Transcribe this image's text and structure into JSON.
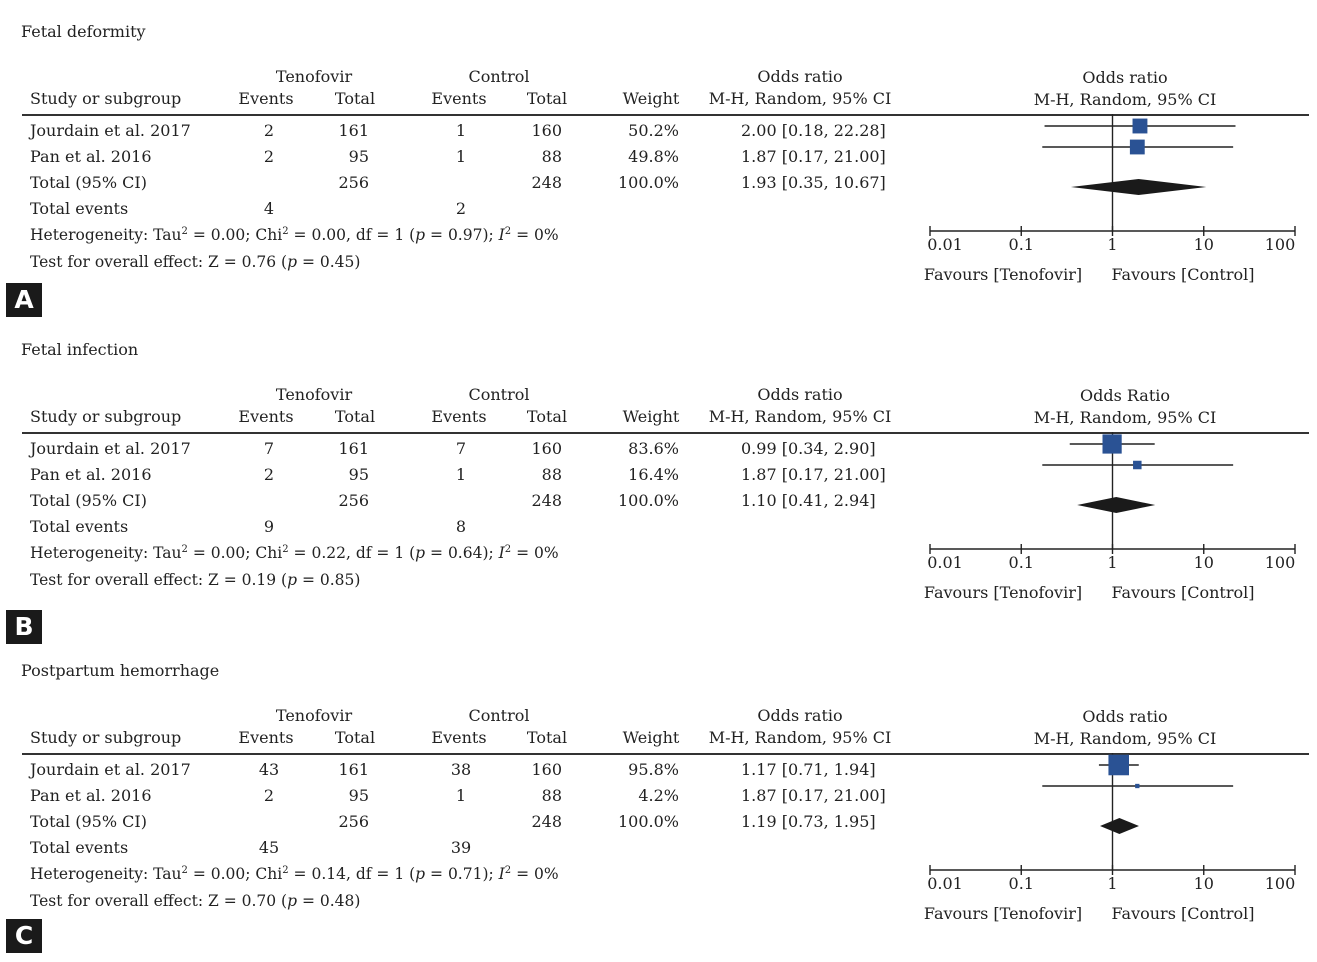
{
  "header": {
    "group_left": "Tenofovir",
    "group_right": "Control",
    "study": "Study or subgroup",
    "events": "Events",
    "total": "Total",
    "weight": "Weight",
    "or_title": "Odds ratio",
    "or_method": "M-H, Random, 95% CI"
  },
  "panels": [
    {
      "label": "A",
      "title": "Fetal deformity",
      "plot_title": "Odds ratio",
      "plot_method": "M-H, Random, 95% CI",
      "rows": [
        {
          "study": "Jourdain et al. 2017",
          "t_events": "2",
          "t_total": "161",
          "c_events": "1",
          "c_total": "160",
          "weight": "50.2%",
          "ci": "2.00 [0.18, 22.28]"
        },
        {
          "study": "Pan et al. 2016",
          "t_events": "2",
          "t_total": "95",
          "c_events": "1",
          "c_total": "88",
          "weight": "49.8%",
          "ci": "1.87 [0.17, 21.00]"
        }
      ],
      "total_row": {
        "study": "Total (95% CI)",
        "t_total": "256",
        "c_total": "248",
        "weight": "100.0%",
        "ci": "1.93 [0.35, 10.67]"
      },
      "events_row": {
        "label": "Total events",
        "t_events": "4",
        "c_events": "2"
      },
      "heterogeneity": {
        "prefix": "Heterogeneity: Tau",
        "tau": "= 0.00; Chi",
        "chi": "= 0.00, df = 1 (",
        "p": "p",
        "p_val": " = 0.97); ",
        "i": "I",
        "i_val": " = 0%"
      },
      "overall": {
        "prefix": "Test for overall effect: Z = 0.76 (",
        "p": "p",
        "p_val": " = 0.45)"
      }
    },
    {
      "label": "B",
      "title": "Fetal infection",
      "plot_title": "Odds Ratio",
      "plot_method": "M-H, Random, 95% CI",
      "rows": [
        {
          "study": "Jourdain et al. 2017",
          "t_events": "7",
          "t_total": "161",
          "c_events": "7",
          "c_total": "160",
          "weight": "83.6%",
          "ci": "0.99 [0.34, 2.90]"
        },
        {
          "study": "Pan et al. 2016",
          "t_events": "2",
          "t_total": "95",
          "c_events": "1",
          "c_total": "88",
          "weight": "16.4%",
          "ci": "1.87 [0.17, 21.00]"
        }
      ],
      "total_row": {
        "study": "Total (95% CI)",
        "t_total": "256",
        "c_total": "248",
        "weight": "100.0%",
        "ci": "1.10 [0.41, 2.94]"
      },
      "events_row": {
        "label": "Total events",
        "t_events": "9",
        "c_events": "8"
      },
      "heterogeneity": {
        "prefix": "Heterogeneity: Tau",
        "tau": "= 0.00; Chi",
        "chi": "= 0.22, df = 1 (",
        "p": "p",
        "p_val": " = 0.64); ",
        "i": "I",
        "i_val": " = 0%"
      },
      "overall": {
        "prefix": "Test for overall effect: Z = 0.19 (",
        "p": "p",
        "p_val": " = 0.85)"
      }
    },
    {
      "label": "C",
      "title": "Postpartum hemorrhage",
      "plot_title": "Odds ratio",
      "plot_method": "M-H, Random, 95% CI",
      "rows": [
        {
          "study": "Jourdain et al. 2017",
          "t_events": "43",
          "t_total": "161",
          "c_events": "38",
          "c_total": "160",
          "weight": "95.8%",
          "ci": "1.17 [0.71, 1.94]"
        },
        {
          "study": "Pan et al. 2016",
          "t_events": "2",
          "t_total": "95",
          "c_events": "1",
          "c_total": "88",
          "weight": "4.2%",
          "ci": "1.87 [0.17, 21.00]"
        }
      ],
      "total_row": {
        "study": "Total (95% CI)",
        "t_total": "256",
        "c_total": "248",
        "weight": "100.0%",
        "ci": "1.19 [0.73, 1.95]"
      },
      "events_row": {
        "label": "Total events",
        "t_events": "45",
        "c_events": "39"
      },
      "heterogeneity": {
        "prefix": "Heterogeneity: Tau",
        "tau": "= 0.00; Chi",
        "chi": "= 0.14, df = 1 (",
        "p": "p",
        "p_val": " = 0.71); ",
        "i": "I",
        "i_val": " = 0%"
      },
      "overall": {
        "prefix": "Test for overall effect: Z = 0.70 (",
        "p": "p",
        "p_val": " = 0.48)"
      }
    }
  ],
  "chart_data": [
    {
      "type": "forest",
      "title": "Fetal deformity",
      "scale": "log",
      "xlim": [
        0.01,
        100
      ],
      "ticks": [
        0.01,
        0.1,
        1,
        10,
        100
      ],
      "tick_labels": [
        "0.01",
        "0.1",
        "1",
        "10",
        "100"
      ],
      "favours_left": "Favours [Tenofovir]",
      "favours_right": "Favours [Control]",
      "studies": [
        {
          "or": 2.0,
          "lower": 0.18,
          "upper": 22.28,
          "weight": 50.2
        },
        {
          "or": 1.87,
          "lower": 0.17,
          "upper": 21.0,
          "weight": 49.8
        }
      ],
      "pooled": {
        "or": 1.93,
        "lower": 0.35,
        "upper": 10.67
      },
      "colors": {
        "study": "#2a5294",
        "pooled": "#1a1a1a"
      }
    },
    {
      "type": "forest",
      "title": "Fetal infection",
      "scale": "log",
      "xlim": [
        0.01,
        100
      ],
      "ticks": [
        0.01,
        0.1,
        1,
        10,
        100
      ],
      "tick_labels": [
        "0.01",
        "0.1",
        "1",
        "10",
        "100"
      ],
      "favours_left": "Favours [Tenofovir]",
      "favours_right": "Favours [Control]",
      "studies": [
        {
          "or": 0.99,
          "lower": 0.34,
          "upper": 2.9,
          "weight": 83.6
        },
        {
          "or": 1.87,
          "lower": 0.17,
          "upper": 21.0,
          "weight": 16.4
        }
      ],
      "pooled": {
        "or": 1.1,
        "lower": 0.41,
        "upper": 2.94
      },
      "colors": {
        "study": "#2a5294",
        "pooled": "#1a1a1a"
      }
    },
    {
      "type": "forest",
      "title": "Postpartum hemorrhage",
      "scale": "log",
      "xlim": [
        0.01,
        100
      ],
      "ticks": [
        0.01,
        0.1,
        1,
        10,
        100
      ],
      "tick_labels": [
        "0.01",
        "0.1",
        "1",
        "10",
        "100"
      ],
      "favours_left": "Favours [Tenofovir]",
      "favours_right": "Favours [Control]",
      "studies": [
        {
          "or": 1.17,
          "lower": 0.71,
          "upper": 1.94,
          "weight": 95.8
        },
        {
          "or": 1.87,
          "lower": 0.17,
          "upper": 21.0,
          "weight": 4.2
        }
      ],
      "pooled": {
        "or": 1.19,
        "lower": 0.73,
        "upper": 1.95
      },
      "colors": {
        "study": "#2a5294",
        "pooled": "#1a1a1a"
      }
    }
  ]
}
